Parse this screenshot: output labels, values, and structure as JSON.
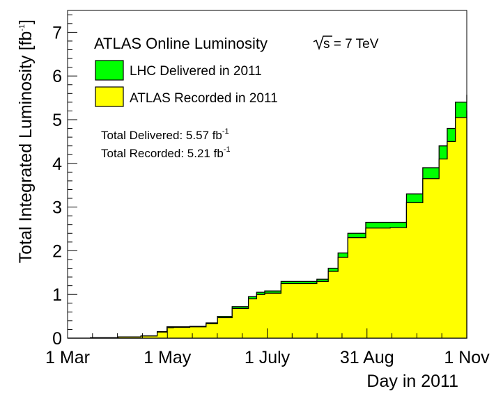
{
  "chart_data": {
    "type": "area",
    "title": "ATLAS Online Luminosity",
    "energy_label": {
      "pre": "s",
      "post": " = 7 TeV"
    },
    "xlabel": "Day in 2011",
    "ylabel": {
      "main": "Total Integrated Luminosity [fb",
      "sup": "-1",
      "close": "]"
    },
    "x_ticks": [
      "1 Mar",
      "1 May",
      "1 July",
      "31 Aug",
      "1 Nov"
    ],
    "y_ticks": [
      "0",
      "1",
      "2",
      "3",
      "4",
      "5",
      "6",
      "7"
    ],
    "xlim": [
      "2011-03-01",
      "2011-11-01"
    ],
    "ylim": [
      0,
      7.5
    ],
    "grid": false,
    "legend_position": "top-left",
    "series": [
      {
        "name": "LHC Delivered in 2011",
        "color": "#00ff00",
        "x": [
          "2011-03-01",
          "2011-03-15",
          "2011-04-01",
          "2011-04-15",
          "2011-04-25",
          "2011-05-01",
          "2011-05-05",
          "2011-05-15",
          "2011-05-25",
          "2011-06-01",
          "2011-06-10",
          "2011-06-20",
          "2011-06-25",
          "2011-06-30",
          "2011-07-10",
          "2011-07-20",
          "2011-07-25",
          "2011-08-01",
          "2011-08-08",
          "2011-08-14",
          "2011-08-20",
          "2011-08-31",
          "2011-09-05",
          "2011-09-15",
          "2011-09-25",
          "2011-10-05",
          "2011-10-15",
          "2011-10-20",
          "2011-10-25",
          "2011-11-01"
        ],
        "values": [
          0,
          0.01,
          0.03,
          0.05,
          0.15,
          0.26,
          0.26,
          0.27,
          0.35,
          0.5,
          0.72,
          0.95,
          1.05,
          1.08,
          1.3,
          1.3,
          1.3,
          1.35,
          1.6,
          1.95,
          2.4,
          2.65,
          2.65,
          2.65,
          3.3,
          3.9,
          4.4,
          4.8,
          5.4,
          5.57
        ]
      },
      {
        "name": "ATLAS Recorded in 2011",
        "color": "#ffff00",
        "x": [
          "2011-03-01",
          "2011-03-15",
          "2011-04-01",
          "2011-04-15",
          "2011-04-25",
          "2011-05-01",
          "2011-05-05",
          "2011-05-15",
          "2011-05-25",
          "2011-06-01",
          "2011-06-10",
          "2011-06-20",
          "2011-06-25",
          "2011-06-30",
          "2011-07-10",
          "2011-07-20",
          "2011-07-25",
          "2011-08-01",
          "2011-08-08",
          "2011-08-14",
          "2011-08-20",
          "2011-08-31",
          "2011-09-05",
          "2011-09-15",
          "2011-09-25",
          "2011-10-05",
          "2011-10-15",
          "2011-10-20",
          "2011-10-25",
          "2011-11-01"
        ],
        "values": [
          0,
          0.01,
          0.03,
          0.05,
          0.14,
          0.24,
          0.25,
          0.26,
          0.33,
          0.47,
          0.68,
          0.9,
          1.0,
          1.03,
          1.25,
          1.25,
          1.25,
          1.3,
          1.53,
          1.85,
          2.3,
          2.52,
          2.52,
          2.53,
          3.1,
          3.65,
          4.1,
          4.5,
          5.05,
          5.21
        ]
      }
    ],
    "totals": [
      {
        "label": "Total Delivered: 5.57 fb",
        "sup": "-1"
      },
      {
        "label": "Total Recorded: 5.21 fb",
        "sup": "-1"
      }
    ]
  }
}
